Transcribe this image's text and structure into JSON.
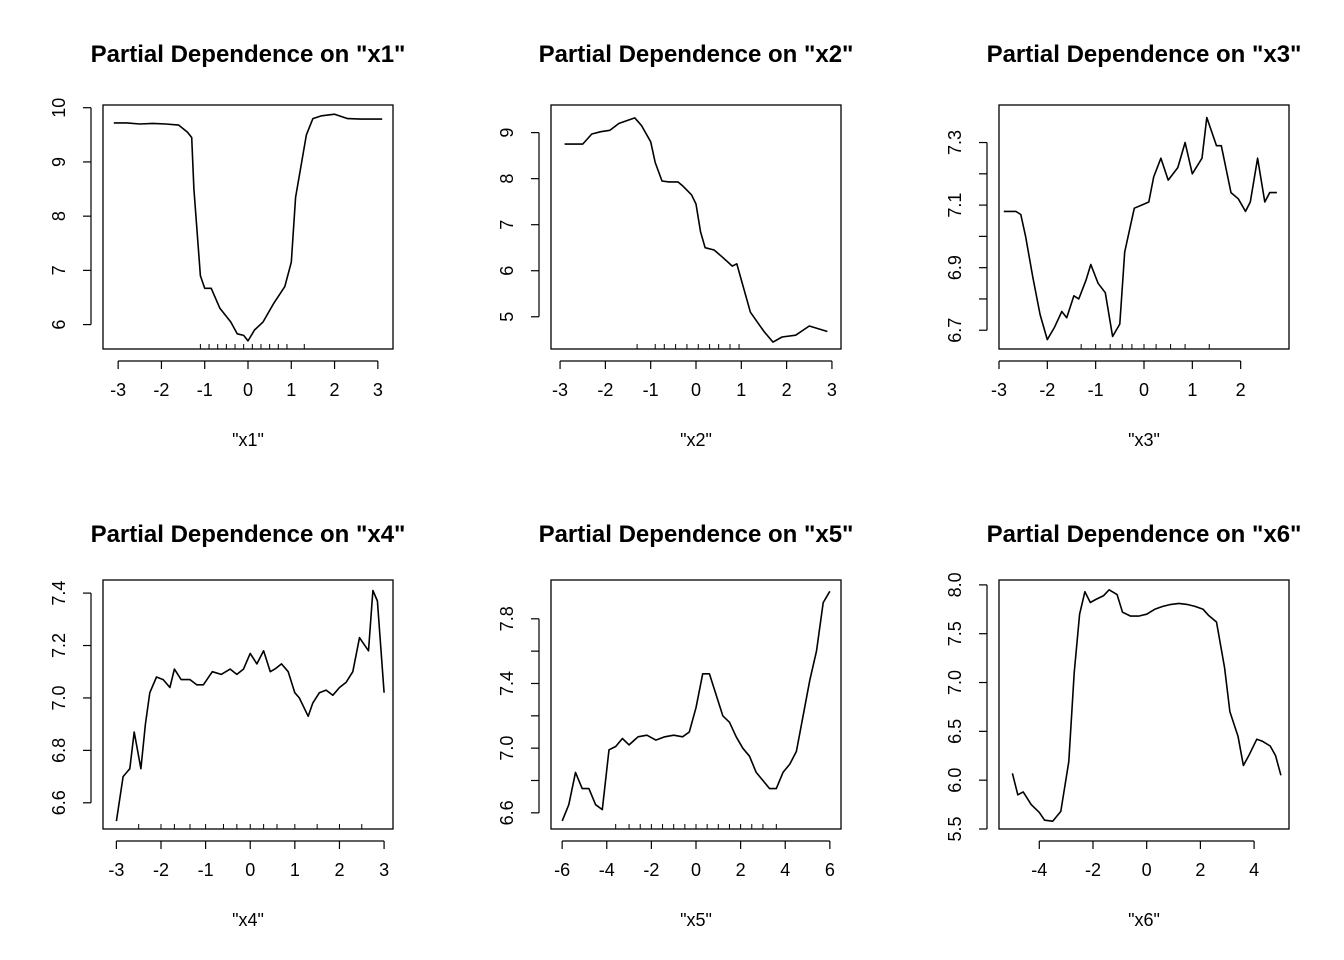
{
  "chart_data": [
    {
      "type": "line",
      "title": "Partial Dependence on \"x1\"",
      "xlabel": "\"x1\"",
      "ylabel": "",
      "xlim": [
        -3.35,
        3.35
      ],
      "ylim": [
        5.55,
        10.05
      ],
      "xticks": [
        -3,
        -2,
        -1,
        0,
        1,
        2,
        3
      ],
      "xtick_labels": [
        "-3",
        "-2",
        "-1",
        "0",
        "1",
        "2",
        "3"
      ],
      "yticks": [
        6,
        7,
        8,
        9,
        10
      ],
      "ytick_labels": [
        "6",
        "7",
        "8",
        "9",
        "10"
      ],
      "rug": [
        -1.1,
        -0.9,
        -0.7,
        -0.5,
        -0.3,
        -0.1,
        0.1,
        0.3,
        0.5,
        0.7,
        0.9,
        1.3
      ],
      "series": [
        {
          "x": [
            -3.1,
            -2.8,
            -2.5,
            -2.2,
            -1.9,
            -1.6,
            -1.4,
            -1.3,
            -1.25,
            -1.1,
            -1.0,
            -0.85,
            -0.65,
            -0.4,
            -0.25,
            -0.1,
            0.0,
            0.15,
            0.35,
            0.6,
            0.85,
            1.0,
            1.1,
            1.35,
            1.5,
            1.7,
            2.0,
            2.3,
            2.6,
            3.1
          ],
          "values": [
            9.72,
            9.72,
            9.7,
            9.71,
            9.7,
            9.68,
            9.55,
            9.45,
            8.5,
            6.9,
            6.67,
            6.67,
            6.3,
            6.05,
            5.83,
            5.8,
            5.7,
            5.9,
            6.05,
            6.4,
            6.7,
            7.15,
            8.35,
            9.5,
            9.8,
            9.85,
            9.88,
            9.8,
            9.79,
            9.79
          ]
        }
      ]
    },
    {
      "type": "line",
      "title": "Partial Dependence on \"x2\"",
      "xlabel": "\"x2\"",
      "ylabel": "",
      "xlim": [
        -3.2,
        3.2
      ],
      "ylim": [
        4.3,
        9.6
      ],
      "xticks": [
        -3,
        -2,
        -1,
        0,
        1,
        2,
        3
      ],
      "xtick_labels": [
        "-3",
        "-2",
        "-1",
        "0",
        "1",
        "2",
        "3"
      ],
      "yticks": [
        5,
        6,
        7,
        8,
        9
      ],
      "ytick_labels": [
        "5",
        "6",
        "7",
        "8",
        "9"
      ],
      "rug": [
        -1.3,
        -0.9,
        -0.7,
        -0.45,
        -0.2,
        0.05,
        0.3,
        0.5,
        0.75,
        0.95
      ],
      "series": [
        {
          "x": [
            -2.9,
            -2.6,
            -2.5,
            -2.3,
            -2.1,
            -1.9,
            -1.7,
            -1.5,
            -1.35,
            -1.2,
            -1.0,
            -0.9,
            -0.75,
            -0.6,
            -0.4,
            -0.3,
            -0.1,
            0.0,
            0.1,
            0.2,
            0.4,
            0.6,
            0.8,
            0.9,
            1.0,
            1.2,
            1.5,
            1.7,
            1.9,
            2.2,
            2.5,
            2.9
          ],
          "values": [
            8.75,
            8.75,
            8.75,
            8.97,
            9.02,
            9.05,
            9.2,
            9.27,
            9.32,
            9.15,
            8.8,
            8.35,
            7.95,
            7.93,
            7.93,
            7.85,
            7.65,
            7.45,
            6.85,
            6.5,
            6.45,
            6.28,
            6.1,
            6.15,
            5.8,
            5.1,
            4.68,
            4.45,
            4.56,
            4.6,
            4.8,
            4.68
          ]
        }
      ]
    },
    {
      "type": "line",
      "title": "Partial Dependence on \"x3\"",
      "xlabel": "\"x3\"",
      "ylabel": "",
      "xlim": [
        -3.0,
        3.0
      ],
      "ylim": [
        6.64,
        7.42
      ],
      "xticks": [
        -3,
        -2,
        -1,
        0,
        1,
        2
      ],
      "xtick_labels": [
        "-3",
        "-2",
        "-1",
        "0",
        "1",
        "2"
      ],
      "yticks": [
        6.7,
        6.8,
        6.9,
        7.0,
        7.1,
        7.2,
        7.3
      ],
      "ytick_labels": [
        "6.7",
        "",
        "6.9",
        "",
        "7.1",
        "",
        "7.3"
      ],
      "rug": [
        -1.3,
        -1.0,
        -0.7,
        -0.45,
        -0.25,
        0.0,
        0.25,
        0.55,
        0.85,
        1.35
      ],
      "series": [
        {
          "x": [
            -2.9,
            -2.65,
            -2.55,
            -2.45,
            -2.3,
            -2.15,
            -2.0,
            -1.85,
            -1.7,
            -1.6,
            -1.45,
            -1.35,
            -1.2,
            -1.1,
            -0.95,
            -0.8,
            -0.65,
            -0.5,
            -0.4,
            -0.3,
            -0.2,
            -0.05,
            0.1,
            0.2,
            0.35,
            0.5,
            0.7,
            0.85,
            1.0,
            1.2,
            1.3,
            1.5,
            1.6,
            1.8,
            1.95,
            2.1,
            2.2,
            2.35,
            2.5,
            2.6,
            2.75
          ],
          "values": [
            7.08,
            7.08,
            7.07,
            7.0,
            6.87,
            6.75,
            6.67,
            6.71,
            6.76,
            6.74,
            6.81,
            6.8,
            6.86,
            6.91,
            6.85,
            6.82,
            6.68,
            6.72,
            6.95,
            7.02,
            7.09,
            7.1,
            7.11,
            7.19,
            7.25,
            7.18,
            7.22,
            7.3,
            7.2,
            7.25,
            7.38,
            7.29,
            7.29,
            7.14,
            7.12,
            7.08,
            7.11,
            7.25,
            7.11,
            7.14,
            7.14
          ]
        }
      ]
    },
    {
      "type": "line",
      "title": "Partial Dependence on \"x4\"",
      "xlabel": "\"x4\"",
      "ylabel": "",
      "xlim": [
        -3.3,
        3.2
      ],
      "ylim": [
        6.5,
        7.45
      ],
      "xticks": [
        -3,
        -2,
        -1,
        0,
        1,
        2,
        3
      ],
      "xtick_labels": [
        "-3",
        "-2",
        "-1",
        "0",
        "1",
        "2",
        "3"
      ],
      "yticks": [
        6.6,
        6.8,
        7.0,
        7.2,
        7.4
      ],
      "ytick_labels": [
        "6.6",
        "6.8",
        "7.0",
        "7.2",
        "7.4"
      ],
      "rug": [
        -2.5,
        -2.0,
        -1.7,
        -1.35,
        -1.0,
        -0.6,
        -0.3,
        0.0,
        0.3,
        0.6,
        1.0,
        1.5,
        2.0,
        2.5
      ],
      "series": [
        {
          "x": [
            -3.0,
            -2.85,
            -2.7,
            -2.6,
            -2.45,
            -2.35,
            -2.25,
            -2.1,
            -1.95,
            -1.8,
            -1.7,
            -1.55,
            -1.35,
            -1.2,
            -1.05,
            -0.85,
            -0.65,
            -0.45,
            -0.3,
            -0.15,
            0.0,
            0.15,
            0.3,
            0.45,
            0.55,
            0.7,
            0.85,
            1.0,
            1.1,
            1.3,
            1.4,
            1.55,
            1.7,
            1.85,
            2.0,
            2.15,
            2.3,
            2.45,
            2.65,
            2.75,
            2.85,
            3.0
          ],
          "values": [
            6.53,
            6.7,
            6.73,
            6.87,
            6.73,
            6.9,
            7.02,
            7.08,
            7.07,
            7.04,
            7.11,
            7.07,
            7.07,
            7.05,
            7.05,
            7.1,
            7.09,
            7.11,
            7.09,
            7.11,
            7.17,
            7.13,
            7.18,
            7.1,
            7.11,
            7.13,
            7.1,
            7.02,
            7.0,
            6.93,
            6.98,
            7.02,
            7.03,
            7.01,
            7.04,
            7.06,
            7.1,
            7.23,
            7.18,
            7.41,
            7.37,
            7.02
          ]
        }
      ]
    },
    {
      "type": "line",
      "title": "Partial Dependence on \"x5\"",
      "xlabel": "\"x5\"",
      "ylabel": "",
      "xlim": [
        -6.5,
        6.5
      ],
      "ylim": [
        6.5,
        8.04
      ],
      "xticks": [
        -6,
        -4,
        -2,
        0,
        2,
        4,
        6
      ],
      "xtick_labels": [
        "-6",
        "-4",
        "-2",
        "0",
        "2",
        "4",
        "6"
      ],
      "yticks": [
        6.6,
        6.8,
        7.0,
        7.2,
        7.4,
        7.6,
        7.8
      ],
      "ytick_labels": [
        "6.6",
        "",
        "7.0",
        "",
        "7.4",
        "",
        "7.8"
      ],
      "rug": [
        -3.6,
        -3.0,
        -2.5,
        -2.0,
        -1.5,
        -1.0,
        -0.5,
        0.0,
        0.5,
        1.0,
        1.5,
        2.0,
        2.5,
        3.0,
        3.6
      ],
      "series": [
        {
          "x": [
            -6.0,
            -5.7,
            -5.4,
            -5.1,
            -4.8,
            -4.5,
            -4.2,
            -3.9,
            -3.6,
            -3.3,
            -3.0,
            -2.6,
            -2.2,
            -1.8,
            -1.4,
            -1.0,
            -0.6,
            -0.3,
            0.0,
            0.3,
            0.6,
            0.9,
            1.2,
            1.5,
            1.8,
            2.1,
            2.4,
            2.7,
            3.0,
            3.3,
            3.6,
            3.9,
            4.2,
            4.5,
            4.8,
            5.1,
            5.4,
            5.7,
            6.0
          ],
          "values": [
            6.55,
            6.65,
            6.85,
            6.75,
            6.75,
            6.65,
            6.62,
            6.99,
            7.01,
            7.06,
            7.02,
            7.07,
            7.08,
            7.05,
            7.07,
            7.08,
            7.07,
            7.1,
            7.25,
            7.46,
            7.46,
            7.33,
            7.2,
            7.16,
            7.07,
            7.0,
            6.95,
            6.85,
            6.8,
            6.75,
            6.75,
            6.85,
            6.9,
            6.98,
            7.2,
            7.42,
            7.6,
            7.9,
            7.97
          ]
        }
      ]
    },
    {
      "type": "line",
      "title": "Partial Dependence on \"x6\"",
      "xlabel": "\"x6\"",
      "ylabel": "",
      "xlim": [
        -5.5,
        5.3
      ],
      "ylim": [
        5.5,
        8.05
      ],
      "xticks": [
        -4,
        -2,
        0,
        2,
        4
      ],
      "xtick_labels": [
        "-4",
        "-2",
        "0",
        "2",
        "4"
      ],
      "yticks": [
        5.5,
        6.0,
        6.5,
        7.0,
        7.5,
        8.0
      ],
      "ytick_labels": [
        "5.5",
        "6.0",
        "6.5",
        "7.0",
        "7.5",
        "8.0"
      ],
      "rug": [],
      "series": [
        {
          "x": [
            -5.0,
            -4.8,
            -4.6,
            -4.3,
            -4.0,
            -3.8,
            -3.5,
            -3.2,
            -2.9,
            -2.7,
            -2.5,
            -2.3,
            -2.1,
            -1.9,
            -1.6,
            -1.4,
            -1.1,
            -0.9,
            -0.6,
            -0.3,
            0.0,
            0.3,
            0.6,
            0.9,
            1.2,
            1.5,
            1.8,
            2.1,
            2.3,
            2.6,
            2.9,
            3.1,
            3.4,
            3.6,
            3.8,
            4.1,
            4.3,
            4.6,
            4.8,
            5.0
          ],
          "values": [
            6.07,
            5.85,
            5.88,
            5.75,
            5.67,
            5.59,
            5.58,
            5.68,
            6.19,
            7.1,
            7.7,
            7.93,
            7.82,
            7.85,
            7.89,
            7.95,
            7.9,
            7.72,
            7.68,
            7.68,
            7.7,
            7.75,
            7.78,
            7.8,
            7.81,
            7.8,
            7.78,
            7.75,
            7.69,
            7.62,
            7.15,
            6.7,
            6.45,
            6.15,
            6.25,
            6.42,
            6.4,
            6.35,
            6.25,
            6.05
          ]
        }
      ]
    }
  ]
}
